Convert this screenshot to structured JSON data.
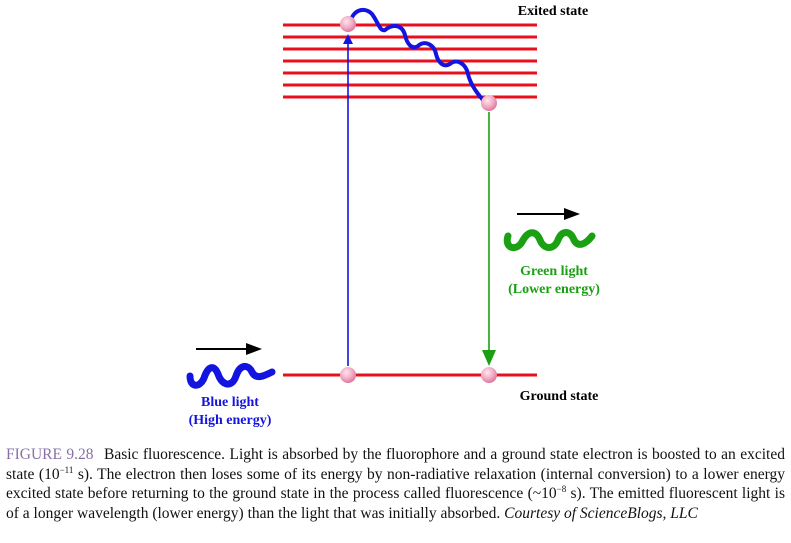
{
  "labels": {
    "excited_state": "Exited state",
    "ground_state": "Ground state",
    "blue_light_1": "Blue light",
    "blue_light_2": "(High energy)",
    "green_light_1": "Green light",
    "green_light_2": "(Lower energy)"
  },
  "caption": {
    "figure_label": "FIGURE 9.28",
    "text_1": "Basic fluorescence. Light is absorbed by the fluorophore and a ground state electron is boosted to an excited state (10",
    "exp_1": "−11",
    "text_2": " s). The electron then loses some of its energy by non-radiative relaxation (internal conversion) to a lower energy excited state before returning to the ground state in the process called fluorescence (~10",
    "exp_2": "−8",
    "text_3": " s). The emitted fluorescent light is of a longer wavelength (lower energy) than the light that was initially absorbed. ",
    "credit": "Courtesy of ScienceBlogs, LLC"
  },
  "colors": {
    "energy_level": "#e8101c",
    "blue_light": "#1414e0",
    "green_light": "#1aa012",
    "electron": "#f0a8c0",
    "arrow_black": "#000000"
  }
}
